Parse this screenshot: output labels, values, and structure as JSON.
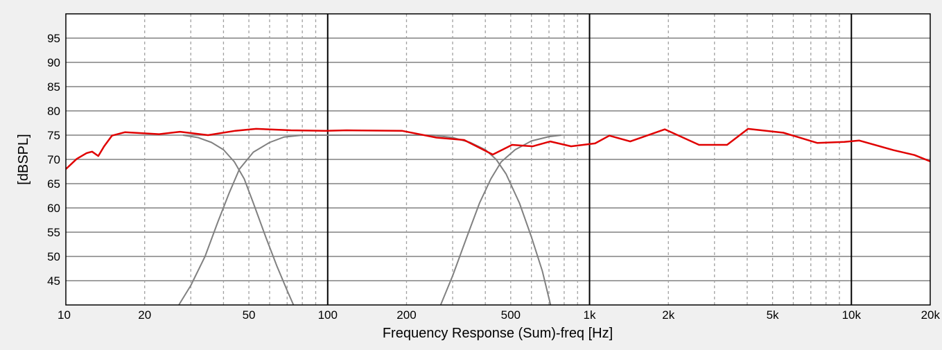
{
  "chart_data": {
    "type": "line",
    "title": "",
    "xlabel": "Frequency Response (Sum)-freq [Hz]",
    "ylabel": "[dBSPL]",
    "xscale": "log",
    "xlim": [
      10,
      20000
    ],
    "ylim": [
      40,
      100
    ],
    "grid": true,
    "x_ticks": [
      10,
      20,
      50,
      100,
      200,
      500,
      1000,
      2000,
      5000,
      10000,
      20000
    ],
    "x_tick_labels": [
      "10",
      "20",
      "50",
      "100",
      "200",
      "500",
      "1k",
      "2k",
      "5k",
      "10k",
      "20k"
    ],
    "y_ticks": [
      45,
      50,
      55,
      60,
      65,
      70,
      75,
      80,
      85,
      90,
      95
    ],
    "y_tick_labels": [
      "45",
      "50",
      "55",
      "60",
      "65",
      "70",
      "75",
      "80",
      "85",
      "90",
      "95"
    ],
    "colors": {
      "sum": "#e00000",
      "driver": "#808080",
      "grid": "#a0a0a0",
      "major_grid": "#000000",
      "background": "#ffffff",
      "page": "#f0f0f0"
    },
    "series": [
      {
        "color": "#e00000",
        "points": [
          [
            10,
            68
          ],
          [
            11,
            70.1
          ],
          [
            12,
            71.3
          ],
          [
            12.6,
            71.6
          ],
          [
            13.3,
            70.7
          ],
          [
            14,
            72.7
          ],
          [
            15,
            74.9
          ],
          [
            16.8,
            75.6
          ],
          [
            22.7,
            75.2
          ],
          [
            27.3,
            75.7
          ],
          [
            34.9,
            75
          ],
          [
            44.4,
            75.9
          ],
          [
            53.3,
            76.3
          ],
          [
            72.4,
            76
          ],
          [
            98,
            75.9
          ],
          [
            118,
            76
          ],
          [
            192,
            75.9
          ],
          [
            260,
            74.5
          ],
          [
            332,
            74
          ],
          [
            427,
            71
          ],
          [
            506,
            73
          ],
          [
            607,
            72.7
          ],
          [
            708,
            73.7
          ],
          [
            850,
            72.7
          ],
          [
            1050,
            73.3
          ],
          [
            1190,
            74.9
          ],
          [
            1430,
            73.7
          ],
          [
            1940,
            76.2
          ],
          [
            2620,
            73
          ],
          [
            3350,
            73
          ],
          [
            4030,
            76.3
          ],
          [
            5500,
            75.5
          ],
          [
            7400,
            73.4
          ],
          [
            9400,
            73.6
          ],
          [
            10700,
            73.9
          ],
          [
            14500,
            71.9
          ],
          [
            17400,
            70.9
          ],
          [
            20000,
            69.6
          ]
        ]
      },
      {
        "color": "#808080",
        "points": [
          [
            28,
            75
          ],
          [
            32,
            74.5
          ],
          [
            36,
            73.5
          ],
          [
            40,
            72
          ],
          [
            44,
            69.5
          ],
          [
            48,
            66
          ],
          [
            52,
            61
          ],
          [
            58,
            54
          ],
          [
            64,
            48
          ],
          [
            70,
            43
          ],
          [
            74,
            40
          ]
        ]
      },
      {
        "color": "#808080",
        "points": [
          [
            27,
            40
          ],
          [
            30,
            44
          ],
          [
            34,
            50
          ],
          [
            38,
            57
          ],
          [
            42,
            63
          ],
          [
            46,
            68
          ],
          [
            52,
            71.5
          ],
          [
            60,
            73.5
          ],
          [
            68,
            74.6
          ],
          [
            80,
            75
          ],
          [
            100,
            75
          ],
          [
            250,
            75
          ],
          [
            300,
            74.5
          ],
          [
            350,
            73.5
          ],
          [
            400,
            72
          ],
          [
            440,
            70
          ],
          [
            480,
            67
          ],
          [
            540,
            61
          ],
          [
            600,
            54
          ],
          [
            660,
            47
          ],
          [
            710,
            40
          ]
        ]
      },
      {
        "color": "#808080",
        "points": [
          [
            270,
            40
          ],
          [
            300,
            46
          ],
          [
            340,
            54
          ],
          [
            380,
            61
          ],
          [
            420,
            66
          ],
          [
            460,
            69.5
          ],
          [
            520,
            72
          ],
          [
            600,
            73.8
          ],
          [
            700,
            74.7
          ],
          [
            780,
            75
          ]
        ]
      }
    ]
  }
}
